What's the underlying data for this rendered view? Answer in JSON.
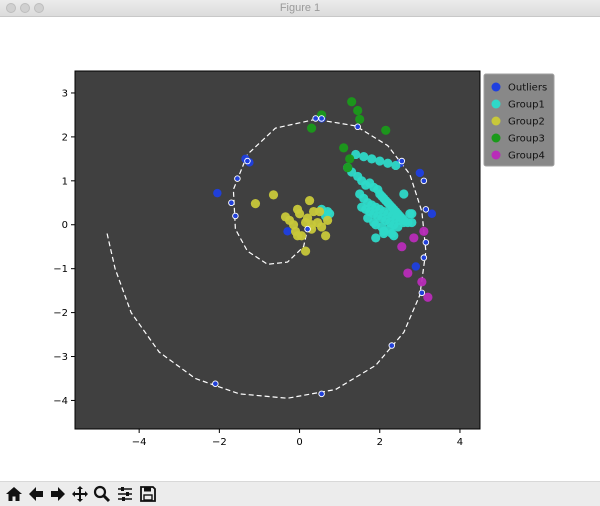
{
  "window": {
    "title": "Figure 1",
    "toolbar_icons": [
      "home-icon",
      "back-icon",
      "forward-icon",
      "pan-icon",
      "zoom-icon",
      "configure-subplots-icon",
      "save-icon"
    ]
  },
  "chart_data": {
    "type": "scatter",
    "title": "",
    "xlabel": "",
    "ylabel": "",
    "xlim": [
      -5.6,
      4.5
    ],
    "ylim": [
      -4.65,
      3.5
    ],
    "x_ticks": [
      -4,
      -2,
      0,
      2,
      4
    ],
    "y_ticks": [
      3,
      2,
      1,
      0,
      -1,
      -2,
      -3,
      -4
    ],
    "grid": false,
    "legend_position": "outside-top-right",
    "background": "#404040",
    "colors": {
      "Outliers": "#1f3fe0",
      "Group1": "#2ed9c8",
      "Group2": "#c8c83a",
      "Group3": "#1a9a1a",
      "Group4": "#b82cb8",
      "spiral": "#ffffff"
    },
    "legend": [
      "Outliers",
      "Group1",
      "Group2",
      "Group3",
      "Group4"
    ],
    "spiral": {
      "style": "dashed",
      "points": [
        [
          -4.8,
          -0.2
        ],
        [
          -4.6,
          -1.0
        ],
        [
          -4.2,
          -2.0
        ],
        [
          -3.5,
          -2.9
        ],
        [
          -2.6,
          -3.5
        ],
        [
          -1.5,
          -3.85
        ],
        [
          -0.3,
          -3.95
        ],
        [
          0.9,
          -3.75
        ],
        [
          1.9,
          -3.2
        ],
        [
          2.6,
          -2.45
        ],
        [
          3.0,
          -1.6
        ],
        [
          3.15,
          -0.6
        ],
        [
          3.05,
          0.3
        ],
        [
          2.75,
          1.15
        ],
        [
          2.2,
          1.8
        ],
        [
          1.4,
          2.25
        ],
        [
          0.4,
          2.4
        ],
        [
          -0.6,
          2.2
        ],
        [
          -1.3,
          1.6
        ],
        [
          -1.65,
          0.8
        ],
        [
          -1.6,
          -0.1
        ],
        [
          -1.3,
          -0.6
        ],
        [
          -0.8,
          -0.9
        ],
        [
          -0.3,
          -0.85
        ],
        [
          0.1,
          -0.5
        ],
        [
          0.2,
          -0.1
        ]
      ]
    },
    "series": [
      {
        "name": "Outliers",
        "x": [
          -2.05,
          -1.25,
          -1.35,
          0.55,
          2.5,
          3.0,
          3.3,
          2.9,
          -0.3
        ],
        "y": [
          0.72,
          1.42,
          1.5,
          2.42,
          1.4,
          1.18,
          0.25,
          -0.95,
          -0.15
        ]
      },
      {
        "name": "Group1",
        "x": [
          1.2,
          1.3,
          1.45,
          1.55,
          1.65,
          1.75,
          1.85,
          1.95,
          2.0,
          2.05,
          2.1,
          2.15,
          2.2,
          2.25,
          2.3,
          2.35,
          2.4,
          2.45,
          2.5,
          2.55,
          2.6,
          2.7,
          2.8,
          1.5,
          1.6,
          1.7,
          1.8,
          1.9,
          2.0,
          2.1,
          2.2,
          2.3,
          2.4,
          2.5,
          2.6,
          1.55,
          1.65,
          1.75,
          1.85,
          1.95,
          2.05,
          2.15,
          2.25,
          2.35,
          2.45,
          1.85,
          2.05,
          2.25,
          1.4,
          1.6,
          1.8,
          2.0,
          2.2,
          2.4,
          1.7,
          1.9,
          2.1,
          2.3,
          2.6,
          2.75,
          0.55,
          0.7,
          0.75,
          0.65,
          1.9,
          2.1,
          2.35,
          2.8
        ],
        "y": [
          1.3,
          1.2,
          1.1,
          1.0,
          0.9,
          0.95,
          0.85,
          0.8,
          0.7,
          0.65,
          0.6,
          0.55,
          0.5,
          0.45,
          0.4,
          0.35,
          0.3,
          0.25,
          0.2,
          0.15,
          0.1,
          0.05,
          0.25,
          0.7,
          0.6,
          0.5,
          0.45,
          0.4,
          0.35,
          0.3,
          0.25,
          0.2,
          0.15,
          0.1,
          0.05,
          0.4,
          0.35,
          0.3,
          0.25,
          0.2,
          0.15,
          0.1,
          0.05,
          0.0,
          -0.05,
          0.05,
          -0.05,
          -0.1,
          1.6,
          1.55,
          1.5,
          1.45,
          1.4,
          1.35,
          0.15,
          0.0,
          -0.15,
          -0.2,
          0.7,
          0.25,
          0.35,
          0.3,
          0.25,
          0.2,
          -0.3,
          -0.2,
          -0.25,
          0.05
        ]
      },
      {
        "name": "Group2",
        "x": [
          -0.65,
          -1.1,
          -0.35,
          -0.15,
          0.0,
          0.15,
          -0.1,
          0.05,
          0.2,
          0.35,
          0.45,
          -0.25,
          -0.05,
          0.25,
          0.55,
          0.65,
          0.7,
          0.5,
          0.3,
          -0.05,
          0.15,
          0.3
        ],
        "y": [
          0.68,
          0.48,
          0.18,
          0.0,
          0.25,
          0.05,
          -0.15,
          -0.25,
          0.15,
          0.3,
          0.05,
          0.1,
          0.35,
          0.55,
          -0.05,
          -0.25,
          0.1,
          0.3,
          -0.1,
          -0.25,
          -0.6,
          0.0
        ]
      },
      {
        "name": "Group3",
        "x": [
          0.55,
          0.3,
          1.3,
          1.45,
          1.5,
          1.25,
          1.1,
          2.15,
          1.2
        ],
        "y": [
          2.5,
          2.2,
          2.8,
          2.6,
          2.4,
          1.5,
          1.75,
          2.15,
          1.3
        ]
      },
      {
        "name": "Group4",
        "x": [
          2.55,
          2.7,
          2.85,
          3.05,
          3.2,
          3.1
        ],
        "y": [
          -0.5,
          -1.1,
          -0.3,
          -1.3,
          -1.65,
          -0.15
        ]
      },
      {
        "name": "spiral_markers",
        "x": [
          -2.1,
          -1.7,
          -1.55,
          -1.6,
          -1.3,
          0.4,
          0.55,
          1.45,
          2.55,
          3.1,
          3.15,
          3.15,
          3.1,
          3.05,
          2.3,
          0.55,
          0.2
        ],
        "y": [
          -3.62,
          0.5,
          1.05,
          0.2,
          1.45,
          2.42,
          2.42,
          2.23,
          1.45,
          1.0,
          0.35,
          -0.4,
          -0.75,
          -1.55,
          -2.75,
          -3.85,
          -0.1
        ]
      }
    ]
  }
}
